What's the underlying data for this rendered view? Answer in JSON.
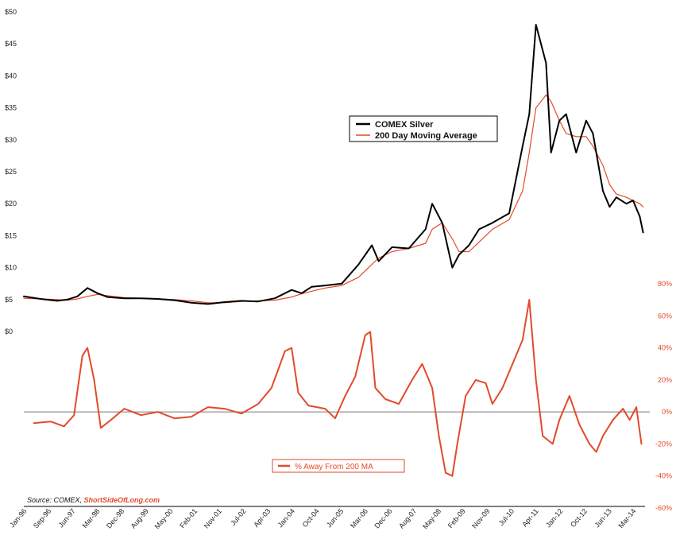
{
  "chart_data": [
    {
      "type": "line",
      "panel": "top",
      "ylim": [
        0,
        50
      ],
      "y_ticks": [
        "$0",
        "$5",
        "$10",
        "$15",
        "$20",
        "$25",
        "$30",
        "$35",
        "$40",
        "$45",
        "$50"
      ],
      "x": [
        1996.0,
        1996.5,
        1997.0,
        1997.3,
        1997.6,
        1997.9,
        1998.2,
        1998.5,
        1999.0,
        1999.5,
        2000.0,
        2000.5,
        2001.0,
        2001.5,
        2002.0,
        2002.5,
        2003.0,
        2003.5,
        2004.0,
        2004.3,
        2004.6,
        2005.0,
        2005.5,
        2006.0,
        2006.4,
        2006.6,
        2007.0,
        2007.5,
        2008.0,
        2008.2,
        2008.5,
        2008.8,
        2009.0,
        2009.3,
        2009.6,
        2010.0,
        2010.5,
        2010.9,
        2011.1,
        2011.3,
        2011.6,
        2011.75,
        2012.0,
        2012.2,
        2012.5,
        2012.8,
        2013.0,
        2013.3,
        2013.5,
        2013.7,
        2014.0,
        2014.2,
        2014.4,
        2014.5
      ],
      "series": [
        {
          "name": "COMEX Silver",
          "color": "#000000",
          "values": [
            5.5,
            5.1,
            4.8,
            5.0,
            5.5,
            6.8,
            6.0,
            5.4,
            5.2,
            5.2,
            5.1,
            4.9,
            4.5,
            4.3,
            4.6,
            4.8,
            4.7,
            5.2,
            6.5,
            6.0,
            7.0,
            7.2,
            7.5,
            10.5,
            13.5,
            11.0,
            13.2,
            13.0,
            16.0,
            20.0,
            17.0,
            10.0,
            12.0,
            13.5,
            16.0,
            17.0,
            18.5,
            29.0,
            34.0,
            48.0,
            42.0,
            28.0,
            33.0,
            34.0,
            28.0,
            33.0,
            31.0,
            22.0,
            19.5,
            21.0,
            20.0,
            20.5,
            18.0,
            15.5
          ]
        },
        {
          "name": "200 Day Moving Average",
          "color": "#e24a2b",
          "values": [
            5.2,
            5.1,
            5.0,
            4.9,
            5.1,
            5.5,
            5.8,
            5.6,
            5.3,
            5.2,
            5.1,
            5.0,
            4.8,
            4.5,
            4.5,
            4.7,
            4.8,
            4.9,
            5.4,
            5.9,
            6.3,
            6.8,
            7.2,
            8.5,
            10.5,
            11.5,
            12.5,
            13.0,
            13.8,
            16.0,
            17.0,
            14.5,
            12.5,
            12.5,
            14.0,
            16.0,
            17.5,
            22.0,
            28.0,
            35.0,
            37.0,
            36.0,
            33.0,
            31.0,
            30.5,
            30.5,
            29.0,
            26.0,
            23.0,
            21.5,
            21.0,
            20.5,
            20.0,
            19.5
          ]
        }
      ],
      "legend": [
        "COMEX Silver",
        "200 Day Moving Average"
      ]
    },
    {
      "type": "line",
      "panel": "bottom",
      "ylim": [
        -60,
        80
      ],
      "y_ticks": [
        "-60%",
        "-40%",
        "-20%",
        "0%",
        "20%",
        "40%",
        "60%",
        "80%"
      ],
      "x": [
        1996.3,
        1996.8,
        1997.2,
        1997.5,
        1997.75,
        1997.9,
        1998.1,
        1998.3,
        1998.6,
        1999.0,
        1999.5,
        2000.0,
        2000.5,
        2001.0,
        2001.5,
        2002.0,
        2002.5,
        2003.0,
        2003.4,
        2003.8,
        2004.0,
        2004.2,
        2004.5,
        2005.0,
        2005.3,
        2005.6,
        2005.9,
        2006.2,
        2006.35,
        2006.5,
        2006.8,
        2007.2,
        2007.6,
        2007.9,
        2008.2,
        2008.4,
        2008.6,
        2008.8,
        2008.95,
        2009.2,
        2009.5,
        2009.8,
        2010.0,
        2010.3,
        2010.6,
        2010.9,
        2011.1,
        2011.3,
        2011.5,
        2011.8,
        2012.0,
        2012.3,
        2012.6,
        2012.9,
        2013.1,
        2013.3,
        2013.6,
        2013.9,
        2014.1,
        2014.3,
        2014.45
      ],
      "series": [
        {
          "name": "% Away From 200 MA",
          "color": "#e24a2b",
          "values": [
            -7,
            -6,
            -9,
            -2,
            35,
            40,
            20,
            -10,
            -5,
            2,
            -2,
            0,
            -4,
            -3,
            3,
            2,
            -1,
            5,
            15,
            38,
            40,
            12,
            4,
            2,
            -4,
            10,
            22,
            48,
            50,
            15,
            8,
            5,
            20,
            30,
            15,
            -15,
            -38,
            -40,
            -20,
            10,
            20,
            18,
            5,
            15,
            30,
            45,
            70,
            20,
            -15,
            -20,
            -5,
            10,
            -8,
            -20,
            -25,
            -15,
            -5,
            2,
            -5,
            3,
            -20
          ]
        }
      ],
      "legend": [
        "% Away From 200 MA"
      ]
    }
  ],
  "x_axis_labels": [
    "Jan-96",
    "Sep-96",
    "Jun-97",
    "Mar-98",
    "Dec-98",
    "Aug-99",
    "May-00",
    "Feb-01",
    "Nov-01",
    "Jul-02",
    "Apr-03",
    "Jan-04",
    "Oct-04",
    "Jun-05",
    "Mar-06",
    "Dec-06",
    "Aug-07",
    "May-08",
    "Feb-09",
    "Nov-09",
    "Jul-10",
    "Apr-11",
    "Jan-12",
    "Oct-12",
    "Jun-13",
    "Mar-14"
  ],
  "source": {
    "prefix": "Source: COMEX, ",
    "brand": "ShortSideOfLong.com"
  },
  "colors": {
    "silver": "#000000",
    "ma": "#e24a2b",
    "pct": "#e24a2b",
    "zero_line": "#777777"
  }
}
